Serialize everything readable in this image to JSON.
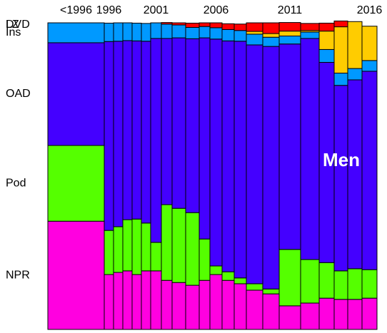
{
  "chart_data": {
    "type": "mosaic",
    "annotation": "Men",
    "categories": [
      "<1996",
      "1996",
      null,
      null,
      null,
      null,
      "2001",
      null,
      null,
      null,
      null,
      "2006",
      null,
      null,
      null,
      null,
      "2011",
      null,
      null,
      null,
      null,
      "2016"
    ],
    "column_widths": [
      79,
      13,
      13,
      13,
      13,
      13,
      15,
      15,
      19,
      19,
      15,
      17,
      17,
      17,
      23,
      23,
      30,
      26,
      21,
      19,
      20,
      21
    ],
    "series": [
      {
        "name": "NPR",
        "color": "#ff00e0",
        "values": [
          35.3,
          17.9,
          18.6,
          19.1,
          17.9,
          19.1,
          19.1,
          16.0,
          15.3,
          14.4,
          16.0,
          17.9,
          16.0,
          14.9,
          12.8,
          11.6,
          7.7,
          8.6,
          10.2,
          9.8,
          9.8,
          10.2
        ]
      },
      {
        "name": "Pod",
        "color": "#55ff00",
        "values": [
          24.7,
          14.4,
          14.9,
          16.7,
          18.1,
          15.6,
          9.3,
          24.7,
          24.2,
          23.7,
          13.5,
          2.8,
          2.8,
          1.9,
          2.1,
          1.6,
          18.4,
          14.2,
          11.6,
          9.3,
          10.0,
          9.3
        ]
      },
      {
        "name": "OAD",
        "color": "#4400ff",
        "values": [
          33.5,
          61.6,
          60.5,
          58.4,
          58.1,
          59.3,
          66.5,
          54.2,
          55.6,
          56.7,
          65.6,
          74.0,
          75.3,
          77.2,
          77.9,
          79.1,
          67.0,
          72.1,
          65.3,
          60.5,
          61.6,
          64.7
        ]
      },
      {
        "name": "Ins",
        "color": "#0099ff",
        "values": [
          6.5,
          6.0,
          6.0,
          5.8,
          5.8,
          5.8,
          5.1,
          4.7,
          4.2,
          3.7,
          3.7,
          3.7,
          3.7,
          3.5,
          3.5,
          3.0,
          2.6,
          2.1,
          4.2,
          4.0,
          3.7,
          3.5
        ]
      },
      {
        "name": "LZ",
        "color": "#ffcc00",
        "values": [
          0,
          0,
          0,
          0,
          0,
          0,
          0,
          0,
          0,
          0,
          0,
          0,
          0,
          0,
          0.9,
          1.2,
          1.6,
          0.5,
          6.0,
          15.1,
          15.3,
          11.2
        ]
      },
      {
        "name": "DVD",
        "color": "#ff0000",
        "values": [
          0,
          0,
          0,
          0,
          0,
          0,
          0,
          0.5,
          0.7,
          1.4,
          1.2,
          1.6,
          1.9,
          2.1,
          2.8,
          3.5,
          2.8,
          2.3,
          2.6,
          1.9,
          0,
          0
        ]
      }
    ]
  }
}
